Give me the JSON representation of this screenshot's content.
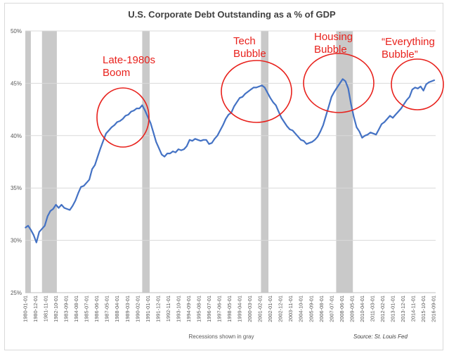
{
  "chart_data": {
    "type": "line",
    "title": "U.S. Corporate Debt Outstanding as a % of GDP",
    "xlabel": "",
    "ylabel": "",
    "ylim": [
      25,
      50
    ],
    "y_ticks": [
      "25%",
      "30%",
      "35%",
      "40%",
      "45%",
      "50%"
    ],
    "grid": true,
    "footnote": "Recessions shown in gray",
    "source": "Source: St. Louis Fed",
    "x_tick_labels": [
      "1980-01-01",
      "1980-12-01",
      "1981-11-01",
      "1982-10-01",
      "1983-09-01",
      "1984-08-01",
      "1985-07-01",
      "1986-06-01",
      "1987-05-01",
      "1988-04-01",
      "1989-03-01",
      "1990-02-01",
      "1991-01-01",
      "1991-12-01",
      "1992-11-01",
      "1993-10-01",
      "1994-09-01",
      "1995-08-01",
      "1996-07-01",
      "1997-06-01",
      "1998-05-01",
      "1999-04-01",
      "2000-03-01",
      "2001-02-01",
      "2002-01-01",
      "2002-12-01",
      "2003-11-01",
      "2004-10-01",
      "2005-09-01",
      "2006-08-01",
      "2007-07-01",
      "2008-06-01",
      "2009-05-01",
      "2010-04-01",
      "2011-03-01",
      "2012-02-01",
      "2013-01-01",
      "2013-12-01",
      "2014-11-01",
      "2015-10-01",
      "2016-09-01"
    ],
    "recessions": [
      {
        "start": "1980-01-01",
        "end": "1980-07-01"
      },
      {
        "start": "1981-07-01",
        "end": "1982-11-01"
      },
      {
        "start": "1990-07-01",
        "end": "1991-03-01"
      },
      {
        "start": "2001-03-01",
        "end": "2001-11-01"
      },
      {
        "start": "2007-12-01",
        "end": "2009-06-01"
      }
    ],
    "series": [
      {
        "color": "#4472c4",
        "points": [
          [
            "1980-01-01",
            31.2
          ],
          [
            "1980-04-01",
            31.4
          ],
          [
            "1980-07-01",
            31.0
          ],
          [
            "1980-10-01",
            30.5
          ],
          [
            "1981-01-01",
            29.8
          ],
          [
            "1981-04-01",
            30.8
          ],
          [
            "1981-07-01",
            31.1
          ],
          [
            "1981-10-01",
            31.4
          ],
          [
            "1982-01-01",
            32.3
          ],
          [
            "1982-04-01",
            32.8
          ],
          [
            "1982-07-01",
            33.0
          ],
          [
            "1982-10-01",
            33.4
          ],
          [
            "1983-01-01",
            33.1
          ],
          [
            "1983-04-01",
            33.4
          ],
          [
            "1983-07-01",
            33.1
          ],
          [
            "1983-10-01",
            33.0
          ],
          [
            "1984-01-01",
            32.9
          ],
          [
            "1984-04-01",
            33.3
          ],
          [
            "1984-07-01",
            33.8
          ],
          [
            "1984-10-01",
            34.5
          ],
          [
            "1985-01-01",
            35.1
          ],
          [
            "1985-04-01",
            35.2
          ],
          [
            "1985-07-01",
            35.5
          ],
          [
            "1985-10-01",
            35.8
          ],
          [
            "1986-01-01",
            36.8
          ],
          [
            "1986-04-01",
            37.2
          ],
          [
            "1986-07-01",
            38.0
          ],
          [
            "1986-10-01",
            38.8
          ],
          [
            "1987-01-01",
            39.5
          ],
          [
            "1987-04-01",
            40.2
          ],
          [
            "1987-07-01",
            40.5
          ],
          [
            "1987-10-01",
            40.8
          ],
          [
            "1988-01-01",
            41.0
          ],
          [
            "1988-04-01",
            41.3
          ],
          [
            "1988-07-01",
            41.4
          ],
          [
            "1988-10-01",
            41.6
          ],
          [
            "1989-01-01",
            41.9
          ],
          [
            "1989-04-01",
            42.0
          ],
          [
            "1989-07-01",
            42.3
          ],
          [
            "1989-10-01",
            42.4
          ],
          [
            "1990-01-01",
            42.6
          ],
          [
            "1990-04-01",
            42.6
          ],
          [
            "1990-07-01",
            42.9
          ],
          [
            "1990-10-01",
            42.4
          ],
          [
            "1991-01-01",
            41.8
          ],
          [
            "1991-04-01",
            41.2
          ],
          [
            "1991-07-01",
            40.3
          ],
          [
            "1991-10-01",
            39.4
          ],
          [
            "1992-01-01",
            38.8
          ],
          [
            "1992-04-01",
            38.2
          ],
          [
            "1992-07-01",
            38.0
          ],
          [
            "1992-10-01",
            38.3
          ],
          [
            "1993-01-01",
            38.3
          ],
          [
            "1993-04-01",
            38.5
          ],
          [
            "1993-07-01",
            38.4
          ],
          [
            "1993-10-01",
            38.7
          ],
          [
            "1994-01-01",
            38.6
          ],
          [
            "1994-04-01",
            38.7
          ],
          [
            "1994-07-01",
            39.0
          ],
          [
            "1994-10-01",
            39.6
          ],
          [
            "1995-01-01",
            39.5
          ],
          [
            "1995-04-01",
            39.7
          ],
          [
            "1995-07-01",
            39.6
          ],
          [
            "1995-10-01",
            39.5
          ],
          [
            "1996-01-01",
            39.6
          ],
          [
            "1996-04-01",
            39.6
          ],
          [
            "1996-07-01",
            39.2
          ],
          [
            "1996-10-01",
            39.3
          ],
          [
            "1997-01-01",
            39.7
          ],
          [
            "1997-04-01",
            40.0
          ],
          [
            "1997-07-01",
            40.5
          ],
          [
            "1997-10-01",
            41.0
          ],
          [
            "1998-01-01",
            41.6
          ],
          [
            "1998-04-01",
            42.0
          ],
          [
            "1998-07-01",
            42.2
          ],
          [
            "1998-10-01",
            42.8
          ],
          [
            "1999-01-01",
            43.2
          ],
          [
            "1999-04-01",
            43.6
          ],
          [
            "1999-07-01",
            43.7
          ],
          [
            "1999-10-01",
            44.0
          ],
          [
            "2000-01-01",
            44.2
          ],
          [
            "2000-04-01",
            44.4
          ],
          [
            "2000-07-01",
            44.6
          ],
          [
            "2000-10-01",
            44.6
          ],
          [
            "2001-01-01",
            44.7
          ],
          [
            "2001-04-01",
            44.8
          ],
          [
            "2001-07-01",
            44.6
          ],
          [
            "2001-10-01",
            44.1
          ],
          [
            "2002-01-01",
            43.6
          ],
          [
            "2002-04-01",
            43.2
          ],
          [
            "2002-07-01",
            42.9
          ],
          [
            "2002-10-01",
            42.3
          ],
          [
            "2003-01-01",
            41.7
          ],
          [
            "2003-04-01",
            41.3
          ],
          [
            "2003-07-01",
            40.9
          ],
          [
            "2003-10-01",
            40.6
          ],
          [
            "2004-01-01",
            40.5
          ],
          [
            "2004-04-01",
            40.2
          ],
          [
            "2004-07-01",
            39.9
          ],
          [
            "2004-10-01",
            39.6
          ],
          [
            "2005-01-01",
            39.5
          ],
          [
            "2005-04-01",
            39.2
          ],
          [
            "2005-07-01",
            39.3
          ],
          [
            "2005-10-01",
            39.4
          ],
          [
            "2006-01-01",
            39.6
          ],
          [
            "2006-04-01",
            39.9
          ],
          [
            "2006-07-01",
            40.4
          ],
          [
            "2006-10-01",
            41.0
          ],
          [
            "2007-01-01",
            41.9
          ],
          [
            "2007-04-01",
            42.8
          ],
          [
            "2007-07-01",
            43.7
          ],
          [
            "2007-10-01",
            44.2
          ],
          [
            "2008-01-01",
            44.6
          ],
          [
            "2008-04-01",
            45.0
          ],
          [
            "2008-07-01",
            45.4
          ],
          [
            "2008-10-01",
            45.2
          ],
          [
            "2009-01-01",
            44.5
          ],
          [
            "2009-04-01",
            43.0
          ],
          [
            "2009-07-01",
            41.8
          ],
          [
            "2009-10-01",
            40.8
          ],
          [
            "2010-01-01",
            40.4
          ],
          [
            "2010-04-01",
            39.8
          ],
          [
            "2010-07-01",
            40.0
          ],
          [
            "2010-10-01",
            40.1
          ],
          [
            "2011-01-01",
            40.3
          ],
          [
            "2011-04-01",
            40.2
          ],
          [
            "2011-07-01",
            40.1
          ],
          [
            "2011-10-01",
            40.6
          ],
          [
            "2012-01-01",
            41.1
          ],
          [
            "2012-04-01",
            41.3
          ],
          [
            "2012-07-01",
            41.6
          ],
          [
            "2012-10-01",
            41.9
          ],
          [
            "2013-01-01",
            41.7
          ],
          [
            "2013-04-01",
            42.0
          ],
          [
            "2013-07-01",
            42.3
          ],
          [
            "2013-10-01",
            42.6
          ],
          [
            "2014-01-01",
            43.0
          ],
          [
            "2014-04-01",
            43.4
          ],
          [
            "2014-07-01",
            43.7
          ],
          [
            "2014-10-01",
            44.4
          ],
          [
            "2015-01-01",
            44.6
          ],
          [
            "2015-04-01",
            44.5
          ],
          [
            "2015-07-01",
            44.7
          ],
          [
            "2015-10-01",
            44.3
          ],
          [
            "2016-01-01",
            44.9
          ],
          [
            "2016-04-01",
            45.1
          ],
          [
            "2016-07-01",
            45.2
          ],
          [
            "2016-10-01",
            45.3
          ]
        ]
      }
    ],
    "annotations": [
      {
        "lines": [
          "Late-1980s",
          "Boom"
        ]
      },
      {
        "lines": [
          "Tech",
          "Bubble"
        ]
      },
      {
        "lines": [
          "Housing",
          "Bubble"
        ]
      },
      {
        "lines": [
          "“Everything",
          "Bubble”"
        ]
      }
    ]
  }
}
